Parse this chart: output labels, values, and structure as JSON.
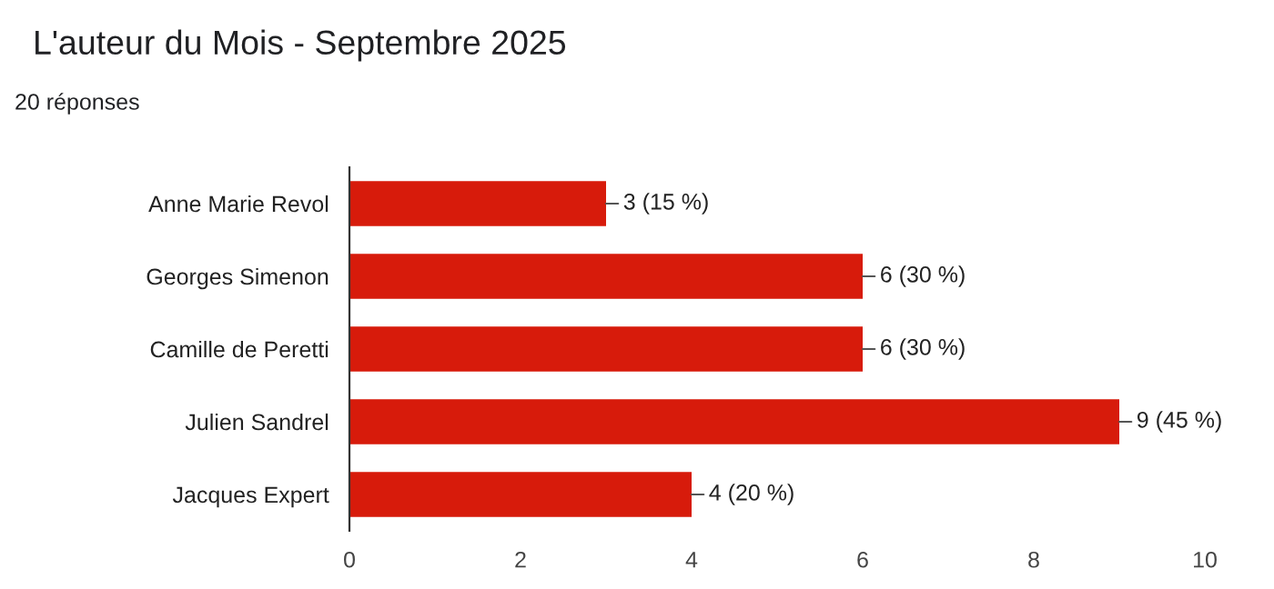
{
  "chart_data": {
    "type": "bar",
    "orientation": "horizontal",
    "title": "L'auteur du Mois - Septembre 2025",
    "subtitle": "20 réponses",
    "categories": [
      "Anne Marie Revol",
      "Georges Simenon",
      "Camille de Peretti",
      "Julien Sandrel",
      "Jacques Expert"
    ],
    "values": [
      3,
      6,
      6,
      9,
      4
    ],
    "color": "#d71b0b",
    "value_labels": [
      "3 (15 %)",
      "6 (30 %)",
      "6 (30 %)",
      "9 (45 %)",
      "4 (20 %)"
    ],
    "xlim": [
      0,
      10
    ],
    "xticks": [
      0,
      2,
      4,
      6,
      8,
      10
    ],
    "legend": false
  }
}
